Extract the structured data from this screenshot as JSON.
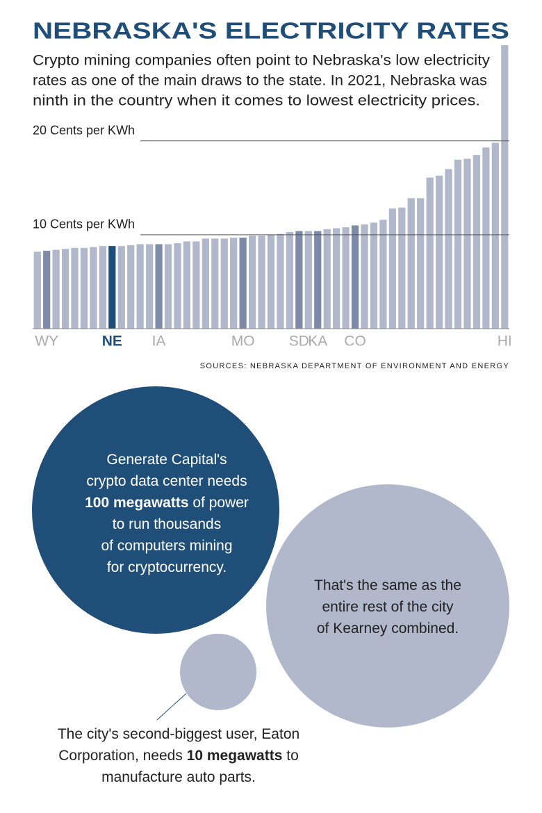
{
  "chart_data": {
    "type": "bar",
    "title": "NEBRASKA'S ELECTRICITY RATES",
    "subtitle": [
      "Crypto mining companies often point to Nebraska's low electricity",
      "rates as one of the main draws to the state. In 2021, Nebraska was",
      "ninth in the country when it comes to  lowest electricity prices."
    ],
    "categories": [
      null,
      "WY",
      null,
      null,
      null,
      null,
      null,
      null,
      "NE",
      null,
      null,
      null,
      null,
      "IA",
      null,
      null,
      null,
      null,
      null,
      null,
      null,
      null,
      "MO",
      null,
      null,
      null,
      null,
      null,
      "SD",
      null,
      "KA",
      null,
      null,
      null,
      "CO",
      null,
      null,
      null,
      null,
      null,
      null,
      null,
      null,
      null,
      null,
      null,
      null,
      null,
      null,
      null,
      "HI"
    ],
    "values": [
      8.2,
      8.3,
      8.4,
      8.5,
      8.6,
      8.6,
      8.7,
      8.8,
      8.8,
      8.8,
      8.9,
      9.0,
      9.0,
      9.0,
      9.0,
      9.1,
      9.3,
      9.3,
      9.6,
      9.6,
      9.6,
      9.7,
      9.7,
      9.9,
      9.9,
      10.0,
      10.1,
      10.3,
      10.4,
      10.4,
      10.4,
      10.6,
      10.7,
      10.8,
      11.0,
      11.1,
      11.3,
      11.6,
      12.8,
      12.9,
      13.9,
      13.9,
      16.1,
      16.3,
      17.0,
      18.0,
      18.1,
      18.5,
      19.3,
      19.8,
      30.2
    ],
    "colors": [
      "#b1b8cc",
      "#7d8aa8",
      "#b1b8cc",
      "#b1b8cc",
      "#b1b8cc",
      "#b1b8cc",
      "#b1b8cc",
      "#b1b8cc",
      "#1f4e79",
      "#b1b8cc",
      "#b1b8cc",
      "#b1b8cc",
      "#b1b8cc",
      "#7d8aa8",
      "#b1b8cc",
      "#b1b8cc",
      "#b1b8cc",
      "#b1b8cc",
      "#b1b8cc",
      "#b1b8cc",
      "#b1b8cc",
      "#b1b8cc",
      "#7d8aa8",
      "#b1b8cc",
      "#b1b8cc",
      "#b1b8cc",
      "#b1b8cc",
      "#b1b8cc",
      "#7d8aa8",
      "#b1b8cc",
      "#7d8aa8",
      "#b1b8cc",
      "#b1b8cc",
      "#b1b8cc",
      "#7d8aa8",
      "#b1b8cc",
      "#b1b8cc",
      "#b1b8cc",
      "#b1b8cc",
      "#b1b8cc",
      "#b1b8cc",
      "#b1b8cc",
      "#b1b8cc",
      "#b1b8cc",
      "#b1b8cc",
      "#b1b8cc",
      "#b1b8cc",
      "#b1b8cc",
      "#b1b8cc",
      "#b1b8cc",
      "#b1b8cc"
    ],
    "ylim": [
      0,
      30.2
    ],
    "yticks": [
      {
        "value": 10,
        "label": "10 Cents per KWh"
      },
      {
        "value": 20,
        "label": "20 Cents per KWh"
      }
    ],
    "grid": true,
    "source": "SOURCES: NEBRASKA DEPARTMENT OF ENVIRONMENT AND ENERGY"
  },
  "bubbles": [
    {
      "lines": [
        {
          "text": "Generate Capital's"
        },
        {
          "text": "crypto data center needs"
        },
        {
          "bold": "100 megawatts",
          "text": " of power"
        },
        {
          "text": "to run thousands"
        },
        {
          "text": "of computers mining"
        },
        {
          "text": "for cryptocurrency."
        }
      ]
    },
    {
      "lines": [
        {
          "text": "That's the same as the"
        },
        {
          "text": "entire rest of the city"
        },
        {
          "text": "of Kearney combined."
        }
      ]
    },
    {
      "lines": [
        {
          "text": "The city's second-biggest user, Eaton"
        },
        {
          "text": "Corporation, needs "
        },
        {
          "text": "manufacture auto parts."
        }
      ]
    }
  ],
  "small_bubble_bold": "10 megawatts",
  "small_bubble_after": " to"
}
